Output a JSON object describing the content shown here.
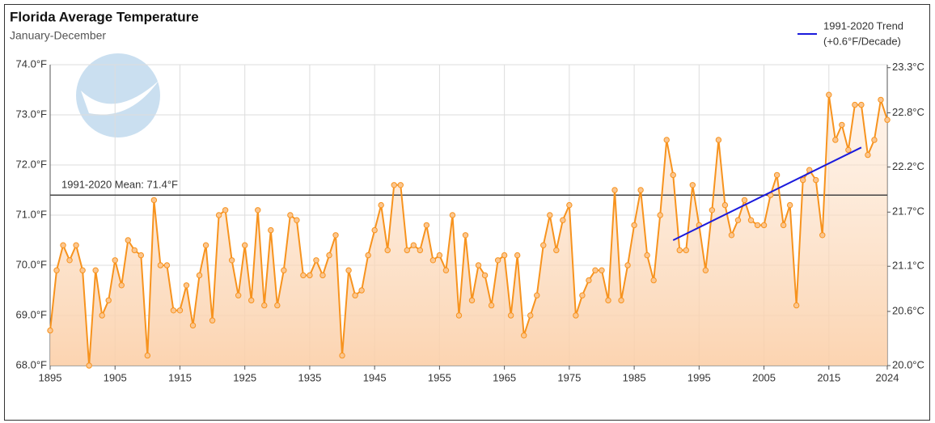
{
  "chart_data": {
    "type": "line",
    "title": "Florida Average Temperature",
    "subtitle": "January-December",
    "x": [
      1895,
      1896,
      1897,
      1898,
      1899,
      1900,
      1901,
      1902,
      1903,
      1904,
      1905,
      1906,
      1907,
      1908,
      1909,
      1910,
      1911,
      1912,
      1913,
      1914,
      1915,
      1916,
      1917,
      1918,
      1919,
      1920,
      1921,
      1922,
      1923,
      1924,
      1925,
      1926,
      1927,
      1928,
      1929,
      1930,
      1931,
      1932,
      1933,
      1934,
      1935,
      1936,
      1937,
      1938,
      1939,
      1940,
      1941,
      1942,
      1943,
      1944,
      1945,
      1946,
      1947,
      1948,
      1949,
      1950,
      1951,
      1952,
      1953,
      1954,
      1955,
      1956,
      1957,
      1958,
      1959,
      1960,
      1961,
      1962,
      1963,
      1964,
      1965,
      1966,
      1967,
      1968,
      1969,
      1970,
      1971,
      1972,
      1973,
      1974,
      1975,
      1976,
      1977,
      1978,
      1979,
      1980,
      1981,
      1982,
      1983,
      1984,
      1985,
      1986,
      1987,
      1988,
      1989,
      1990,
      1991,
      1992,
      1993,
      1994,
      1995,
      1996,
      1997,
      1998,
      1999,
      2000,
      2001,
      2002,
      2003,
      2004,
      2005,
      2006,
      2007,
      2008,
      2009,
      2010,
      2011,
      2012,
      2013,
      2014,
      2015,
      2016,
      2017,
      2018,
      2019,
      2020,
      2021,
      2022,
      2023,
      2024
    ],
    "series": [
      {
        "color": "#f7931e",
        "values": [
          68.7,
          69.9,
          70.4,
          70.1,
          70.4,
          69.9,
          68.0,
          69.9,
          69.0,
          69.3,
          70.1,
          69.6,
          70.5,
          70.3,
          70.2,
          68.2,
          71.3,
          70.0,
          70.0,
          69.1,
          69.1,
          69.6,
          68.8,
          69.8,
          70.4,
          68.9,
          71.0,
          71.1,
          70.1,
          69.4,
          70.4,
          69.3,
          71.1,
          69.2,
          70.7,
          69.2,
          69.9,
          71.0,
          70.9,
          69.8,
          69.8,
          70.1,
          69.8,
          70.2,
          70.6,
          68.2,
          69.9,
          69.4,
          69.5,
          70.2,
          70.7,
          71.2,
          70.3,
          71.6,
          71.6,
          70.3,
          70.4,
          70.3,
          70.8,
          70.1,
          70.2,
          69.9,
          71.0,
          69.0,
          70.6,
          69.3,
          70.0,
          69.8,
          69.2,
          70.1,
          70.2,
          69.0,
          70.2,
          68.6,
          69.0,
          69.4,
          70.4,
          71.0,
          70.3,
          70.9,
          71.2,
          69.0,
          69.4,
          69.7,
          69.9,
          69.9,
          69.3,
          71.5,
          69.3,
          70.0,
          70.8,
          71.5,
          70.2,
          69.7,
          71.0,
          72.5,
          71.8,
          70.3,
          70.3,
          71.6,
          70.8,
          69.9,
          71.1,
          72.5,
          71.2,
          70.6,
          70.9,
          71.3,
          70.9,
          70.8,
          70.8,
          71.4,
          71.8,
          70.8,
          71.2,
          69.2,
          71.7,
          71.9,
          71.7,
          70.6,
          73.4,
          72.5,
          72.8,
          72.3,
          73.2,
          73.2,
          72.2,
          72.5,
          73.3,
          72.9
        ]
      }
    ],
    "trend": {
      "name": "1991-2020 Trend",
      "note": "(+0.6°F/Decade)",
      "color": "#1a1adc",
      "x": [
        1991,
        2020
      ],
      "values": [
        70.5,
        72.35
      ]
    },
    "mean": {
      "label": "1991-2020 Mean: 71.4°F",
      "value": 71.4
    },
    "xlim": [
      1895,
      2024
    ],
    "xticks": [
      1895,
      1905,
      1915,
      1925,
      1935,
      1945,
      1955,
      1965,
      1975,
      1985,
      1995,
      2005,
      2015,
      2024
    ],
    "ylim": [
      68,
      74
    ],
    "yticks": [
      {
        "value": 68,
        "label": "68.0°F"
      },
      {
        "value": 69,
        "label": "69.0°F"
      },
      {
        "value": 70,
        "label": "70.0°F"
      },
      {
        "value": 71,
        "label": "71.0°F"
      },
      {
        "value": 72,
        "label": "72.0°F"
      },
      {
        "value": 73,
        "label": "73.0°F"
      },
      {
        "value": 74,
        "label": "74.0°F"
      }
    ],
    "y2lim": [
      20.0,
      23.333
    ],
    "y2ticks": [
      {
        "value": 20.0,
        "label": "20.0°C"
      },
      {
        "value": 20.6,
        "label": "20.6°C"
      },
      {
        "value": 21.1,
        "label": "21.1°C"
      },
      {
        "value": 21.7,
        "label": "21.7°C"
      },
      {
        "value": 22.2,
        "label": "22.2°C"
      },
      {
        "value": 22.8,
        "label": "22.8°C"
      },
      {
        "value": 23.3,
        "label": "23.3°C"
      }
    ],
    "grid": true,
    "legend": "top-right"
  }
}
